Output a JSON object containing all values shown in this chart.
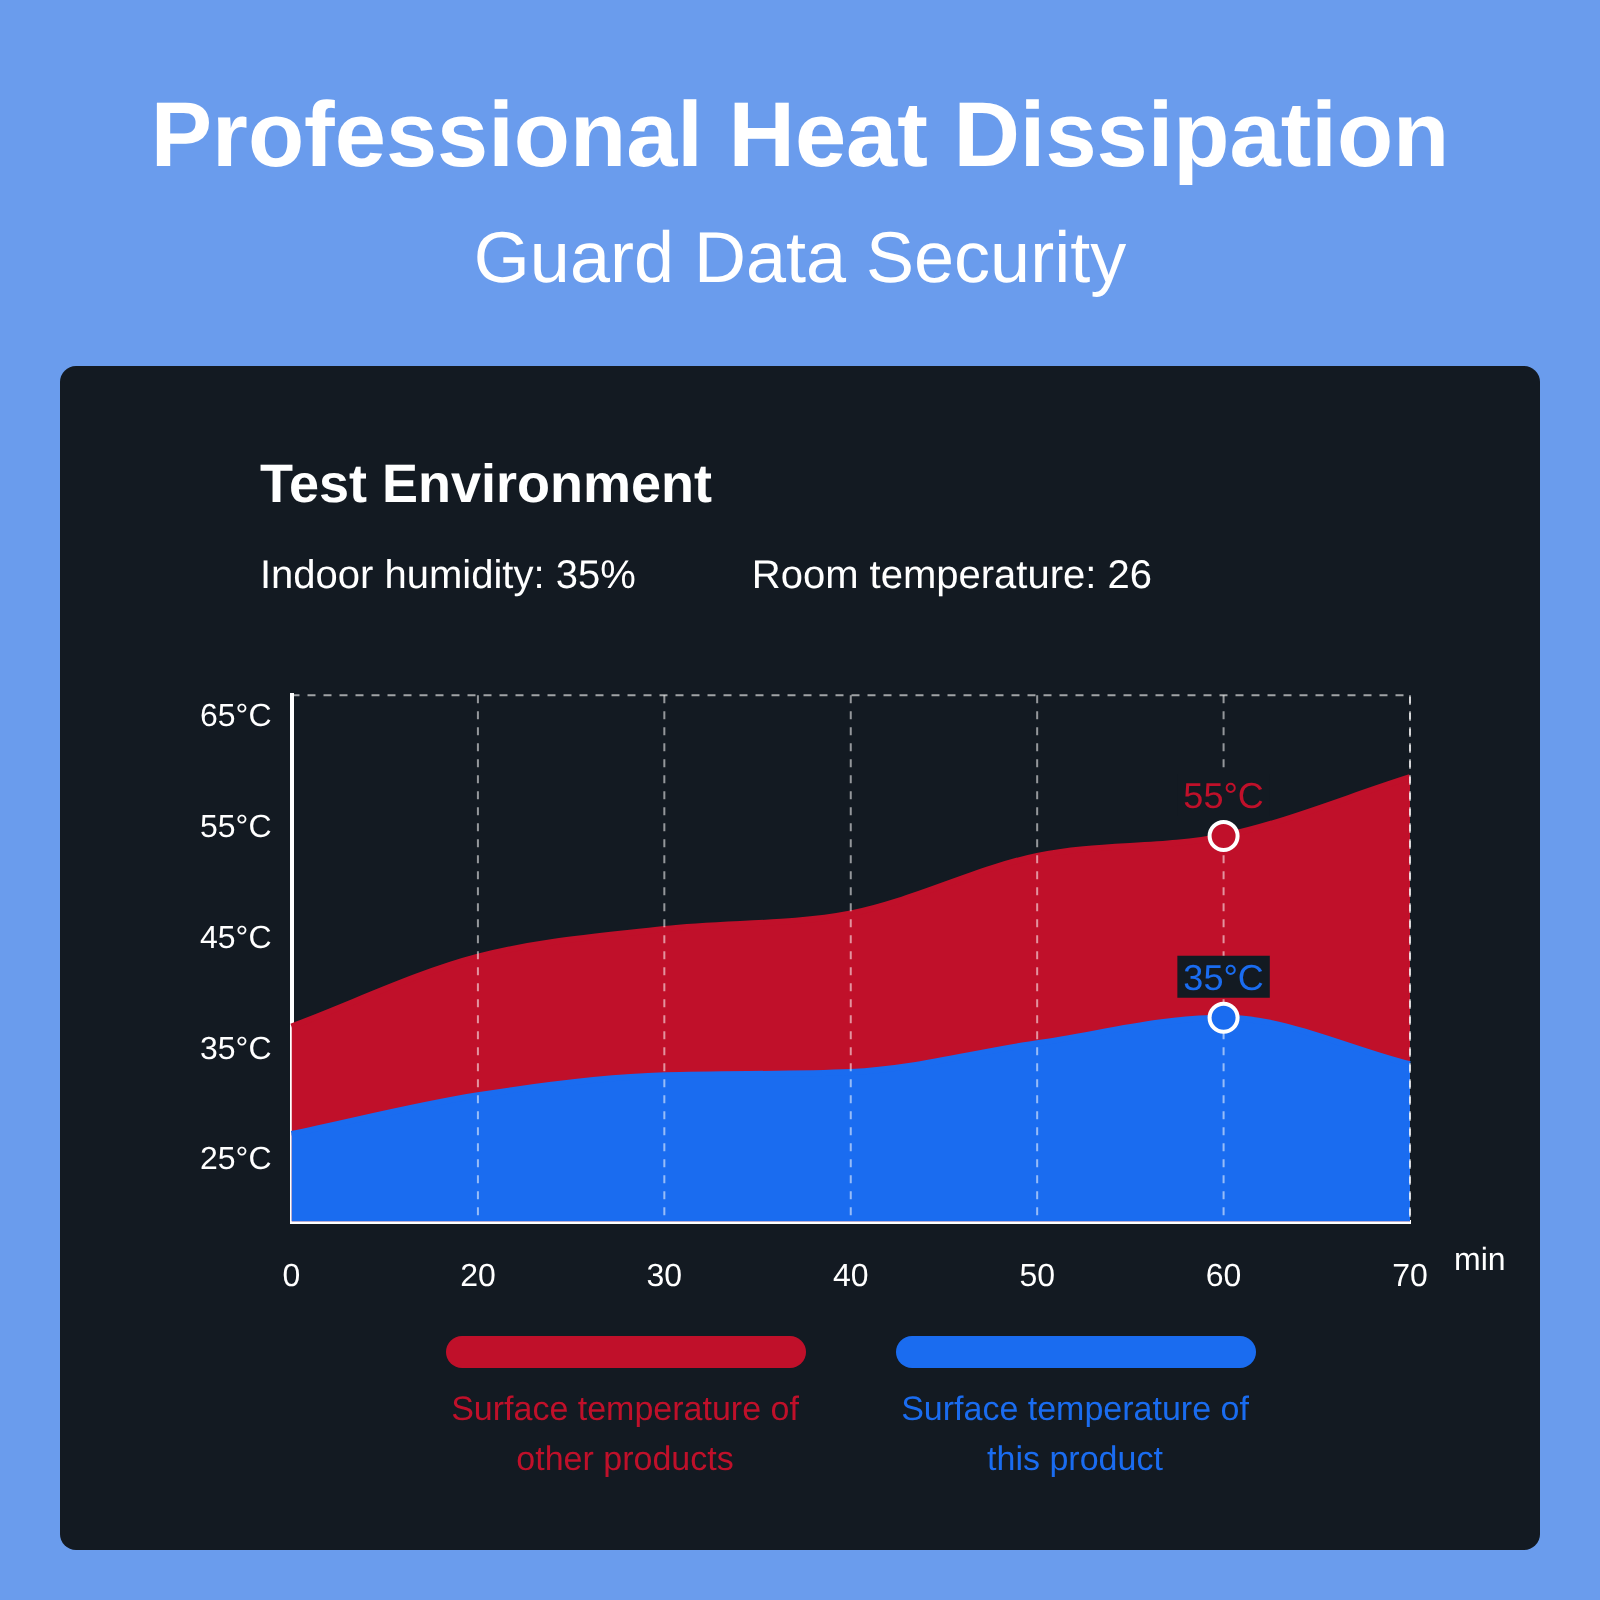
{
  "chart_data": {
    "type": "area",
    "title": "Professional Heat Dissipation",
    "subtitle": "Guard Data Security",
    "annotations": [
      "Test Environment",
      "Indoor humidity: 35%",
      "Room temperature: 26",
      {
        "text": "55°C",
        "x": "60",
        "y": 54.3
      },
      {
        "text": "35°C",
        "x": "60",
        "y": 37.9
      }
    ],
    "xlabel": "min",
    "categories": [
      "0",
      "20",
      "30",
      "40",
      "50",
      "60",
      "70"
    ],
    "series": [
      {
        "name": "Surface temperature of other products",
        "color": "#c0102a",
        "values": [
          37.1,
          43.4,
          45.9,
          47.3,
          52.5,
          54.3,
          59.6
        ]
      },
      {
        "name": "Surface temperature of this product",
        "color": "#1a6cf0",
        "values": [
          27.4,
          30.9,
          32.7,
          33.0,
          35.6,
          37.9,
          33.7
        ]
      }
    ],
    "ylim": [
      19.5,
      67
    ],
    "yticks": [
      {
        "value": 25,
        "label": "25°C"
      },
      {
        "value": 35,
        "label": "35°C"
      },
      {
        "value": 45,
        "label": "45°C"
      },
      {
        "value": 55,
        "label": "55°C"
      },
      {
        "value": 65,
        "label": "65°C"
      }
    ],
    "grid": "x",
    "legend": "bottom"
  }
}
